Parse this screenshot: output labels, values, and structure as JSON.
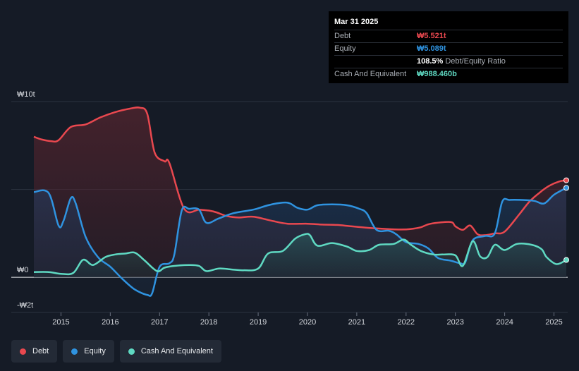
{
  "tooltip": {
    "date": "Mar 31 2025",
    "rows": [
      {
        "label": "Debt",
        "value": "₩5.521t",
        "color": "#e9484f"
      },
      {
        "label": "Equity",
        "value": "₩5.089t",
        "color": "#2f93e0"
      },
      {
        "label": "",
        "value": "108.5%",
        "extra": "Debt/Equity Ratio",
        "color": "#ffffff"
      },
      {
        "label": "Cash And Equivalent",
        "value": "₩988.460b",
        "color": "#5fd9c2"
      }
    ]
  },
  "legend": [
    {
      "label": "Debt",
      "color": "#e9484f"
    },
    {
      "label": "Equity",
      "color": "#2f93e0"
    },
    {
      "label": "Cash And Equivalent",
      "color": "#5fd9c2"
    }
  ],
  "chart_data": {
    "type": "area",
    "title": "",
    "xlabel": "",
    "ylabel": "",
    "ylim": [
      -2,
      10
    ],
    "xlim": [
      2014.45,
      2025.25
    ],
    "y_tick_labels": [
      {
        "value": 10,
        "label": "₩10t"
      },
      {
        "value": 0,
        "label": "₩0"
      },
      {
        "value": -2,
        "label": "-₩2t"
      }
    ],
    "x_ticks": [
      2015,
      2016,
      2017,
      2018,
      2019,
      2020,
      2021,
      2022,
      2023,
      2024,
      2025
    ],
    "x_tick_labels": [
      "2015",
      "2016",
      "2017",
      "2018",
      "2019",
      "2020",
      "2021",
      "2022",
      "2023",
      "2024",
      "2025"
    ],
    "series": [
      {
        "name": "Debt",
        "color": "#e9484f",
        "points": [
          [
            2014.45,
            8.0
          ],
          [
            2014.6,
            7.85
          ],
          [
            2014.8,
            7.75
          ],
          [
            2014.95,
            7.8
          ],
          [
            2015.2,
            8.55
          ],
          [
            2015.5,
            8.7
          ],
          [
            2015.8,
            9.1
          ],
          [
            2016.1,
            9.4
          ],
          [
            2016.4,
            9.6
          ],
          [
            2016.6,
            9.65
          ],
          [
            2016.75,
            9.3
          ],
          [
            2016.9,
            7.1
          ],
          [
            2017.1,
            6.6
          ],
          [
            2017.2,
            6.5
          ],
          [
            2017.5,
            3.9
          ],
          [
            2017.8,
            3.85
          ],
          [
            2018.0,
            3.8
          ],
          [
            2018.15,
            3.7
          ],
          [
            2018.35,
            3.5
          ],
          [
            2018.6,
            3.4
          ],
          [
            2018.9,
            3.45
          ],
          [
            2019.3,
            3.2
          ],
          [
            2019.6,
            3.05
          ],
          [
            2020.0,
            3.05
          ],
          [
            2020.3,
            3.0
          ],
          [
            2020.6,
            2.98
          ],
          [
            2020.9,
            2.9
          ],
          [
            2021.3,
            2.8
          ],
          [
            2021.6,
            2.75
          ],
          [
            2021.9,
            2.72
          ],
          [
            2022.1,
            2.75
          ],
          [
            2022.3,
            2.85
          ],
          [
            2022.5,
            3.05
          ],
          [
            2022.9,
            3.15
          ],
          [
            2023.0,
            2.9
          ],
          [
            2023.15,
            2.7
          ],
          [
            2023.3,
            2.95
          ],
          [
            2023.45,
            2.45
          ],
          [
            2023.6,
            2.4
          ],
          [
            2023.8,
            2.5
          ],
          [
            2024.0,
            2.6
          ],
          [
            2024.3,
            3.6
          ],
          [
            2024.5,
            4.3
          ],
          [
            2024.7,
            4.8
          ],
          [
            2024.9,
            5.2
          ],
          [
            2025.1,
            5.45
          ],
          [
            2025.25,
            5.521
          ]
        ]
      },
      {
        "name": "Equity",
        "color": "#2f93e0",
        "points": [
          [
            2014.45,
            4.85
          ],
          [
            2014.75,
            4.8
          ],
          [
            2014.95,
            2.95
          ],
          [
            2015.05,
            3.2
          ],
          [
            2015.2,
            4.5
          ],
          [
            2015.3,
            4.2
          ],
          [
            2015.5,
            2.3
          ],
          [
            2015.75,
            1.15
          ],
          [
            2016.0,
            0.6
          ],
          [
            2016.25,
            -0.1
          ],
          [
            2016.5,
            -0.7
          ],
          [
            2016.75,
            -1.0
          ],
          [
            2016.85,
            -0.9
          ],
          [
            2017.0,
            0.6
          ],
          [
            2017.2,
            0.8
          ],
          [
            2017.3,
            1.3
          ],
          [
            2017.45,
            3.8
          ],
          [
            2017.6,
            3.9
          ],
          [
            2017.8,
            3.85
          ],
          [
            2017.95,
            3.1
          ],
          [
            2018.2,
            3.35
          ],
          [
            2018.5,
            3.65
          ],
          [
            2018.9,
            3.85
          ],
          [
            2019.2,
            4.1
          ],
          [
            2019.5,
            4.25
          ],
          [
            2019.65,
            4.2
          ],
          [
            2019.8,
            3.95
          ],
          [
            2020.0,
            3.85
          ],
          [
            2020.2,
            4.1
          ],
          [
            2020.5,
            4.15
          ],
          [
            2020.8,
            4.1
          ],
          [
            2021.05,
            3.9
          ],
          [
            2021.2,
            3.65
          ],
          [
            2021.4,
            2.7
          ],
          [
            2021.65,
            2.65
          ],
          [
            2021.8,
            2.45
          ],
          [
            2022.0,
            2.0
          ],
          [
            2022.25,
            1.9
          ],
          [
            2022.45,
            1.65
          ],
          [
            2022.65,
            1.1
          ],
          [
            2022.9,
            0.95
          ],
          [
            2023.1,
            0.8
          ],
          [
            2023.2,
            0.85
          ],
          [
            2023.35,
            2.1
          ],
          [
            2023.6,
            2.35
          ],
          [
            2023.8,
            2.5
          ],
          [
            2023.95,
            4.3
          ],
          [
            2024.1,
            4.4
          ],
          [
            2024.35,
            4.4
          ],
          [
            2024.6,
            4.35
          ],
          [
            2024.8,
            4.2
          ],
          [
            2025.0,
            4.7
          ],
          [
            2025.25,
            5.089
          ]
        ]
      },
      {
        "name": "Cash And Equivalent",
        "color": "#5fd9c2",
        "points": [
          [
            2014.45,
            0.3
          ],
          [
            2014.75,
            0.3
          ],
          [
            2015.0,
            0.2
          ],
          [
            2015.25,
            0.25
          ],
          [
            2015.45,
            1.0
          ],
          [
            2015.65,
            0.7
          ],
          [
            2015.9,
            1.15
          ],
          [
            2016.1,
            1.3
          ],
          [
            2016.3,
            1.35
          ],
          [
            2016.5,
            1.4
          ],
          [
            2016.7,
            0.95
          ],
          [
            2016.95,
            0.35
          ],
          [
            2017.1,
            0.55
          ],
          [
            2017.3,
            0.65
          ],
          [
            2017.6,
            0.7
          ],
          [
            2017.8,
            0.65
          ],
          [
            2017.95,
            0.35
          ],
          [
            2018.2,
            0.5
          ],
          [
            2018.45,
            0.45
          ],
          [
            2018.7,
            0.4
          ],
          [
            2019.0,
            0.5
          ],
          [
            2019.2,
            1.35
          ],
          [
            2019.5,
            1.5
          ],
          [
            2019.75,
            2.2
          ],
          [
            2019.95,
            2.45
          ],
          [
            2020.05,
            2.4
          ],
          [
            2020.2,
            1.8
          ],
          [
            2020.5,
            1.95
          ],
          [
            2020.8,
            1.75
          ],
          [
            2021.0,
            1.5
          ],
          [
            2021.25,
            1.55
          ],
          [
            2021.45,
            1.85
          ],
          [
            2021.75,
            1.9
          ],
          [
            2021.95,
            2.15
          ],
          [
            2022.1,
            1.85
          ],
          [
            2022.3,
            1.5
          ],
          [
            2022.55,
            1.3
          ],
          [
            2022.75,
            1.3
          ],
          [
            2023.0,
            1.25
          ],
          [
            2023.15,
            0.65
          ],
          [
            2023.35,
            2.05
          ],
          [
            2023.5,
            1.2
          ],
          [
            2023.65,
            1.15
          ],
          [
            2023.8,
            1.85
          ],
          [
            2024.0,
            1.55
          ],
          [
            2024.25,
            1.9
          ],
          [
            2024.55,
            1.85
          ],
          [
            2024.75,
            1.6
          ],
          [
            2024.85,
            1.15
          ],
          [
            2025.05,
            0.75
          ],
          [
            2025.25,
            0.988
          ]
        ]
      }
    ]
  }
}
